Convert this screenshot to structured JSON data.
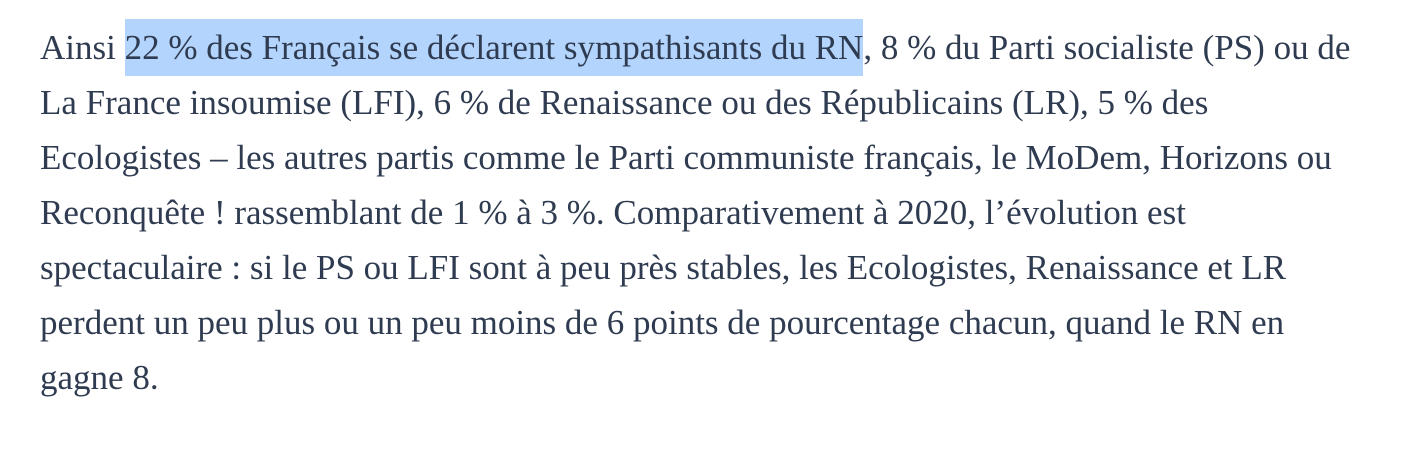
{
  "page": {
    "background_color": "#ffffff",
    "text_color": "#2f3b50",
    "selection_color": "#b3d4fc"
  },
  "paragraph": {
    "before_selection": "Ainsi ",
    "selected_text": "22 % des Français se déclarent sympathisants du RN",
    "after_selection": ", 8 % du Parti socialiste (PS) ou de La France insoumise (LFI), 6 % de Renaissance ou des Républicains (LR), 5 % des Ecologistes – les autres partis comme le Parti communiste français, le MoDem, Horizons ou Reconquête ! rassemblant de 1 % à 3 %. Comparativement à 2020, l’évolution est spectaculaire : si le PS ou LFI sont à peu près stables, les Ecologistes, Renaissance et LR perdent un peu plus ou un peu moins de 6 points de pourcentage chacun, quand le RN en gagne 8."
  }
}
